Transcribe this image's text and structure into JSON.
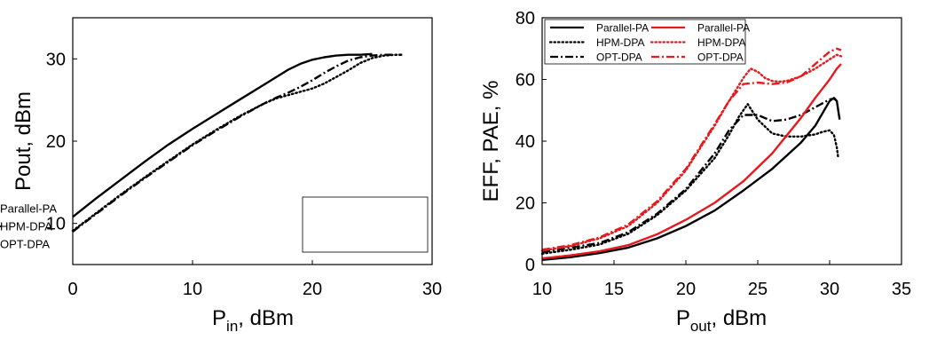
{
  "colors": {
    "black": "#000000",
    "red": "#e8191c",
    "frame": "#000000"
  },
  "chart_data": [
    {
      "type": "line",
      "title": "",
      "xlabel": {
        "main": "P",
        "sub": "in",
        "suffix": ", dBm"
      },
      "ylabel": "Pout, dBm",
      "xlim": [
        0,
        30
      ],
      "ylim": [
        5,
        35
      ],
      "xticks": [
        "0",
        "10",
        "20",
        "30"
      ],
      "yticks": [
        "10",
        "20",
        "30"
      ],
      "grid": false,
      "legend_position": "bottom-right",
      "series": [
        {
          "name": "Parallel-PA",
          "color": "#000000",
          "style": "solid",
          "x": [
            0,
            2,
            4,
            6,
            8,
            10,
            12,
            14,
            16,
            18,
            19,
            20,
            21,
            22,
            23,
            24,
            25
          ],
          "y": [
            10.8,
            13.1,
            15.3,
            17.5,
            19.6,
            21.5,
            23.3,
            25.1,
            26.9,
            28.7,
            29.4,
            29.9,
            30.2,
            30.4,
            30.5,
            30.5,
            30.6
          ]
        },
        {
          "name": "HPM-DPA",
          "color": "#000000",
          "style": "dotted",
          "x": [
            0,
            2,
            4,
            6,
            8,
            10,
            12,
            14,
            16,
            17,
            18,
            19,
            20,
            21,
            22,
            23,
            24,
            25,
            26,
            27,
            27.5
          ],
          "y": [
            9.1,
            11.3,
            13.5,
            15.6,
            17.6,
            19.6,
            21.4,
            23.1,
            24.6,
            25.2,
            25.6,
            26.0,
            26.4,
            27.0,
            27.8,
            28.6,
            29.5,
            30.1,
            30.4,
            30.5,
            30.5
          ]
        },
        {
          "name": "OPT-DPA",
          "color": "#000000",
          "style": "dashdot",
          "x": [
            0,
            2,
            4,
            6,
            8,
            10,
            12,
            14,
            16,
            17,
            18,
            19,
            20,
            21,
            22,
            23,
            24,
            25,
            26,
            27,
            27.5
          ],
          "y": [
            9.0,
            11.2,
            13.4,
            15.5,
            17.5,
            19.5,
            21.3,
            23.0,
            24.6,
            25.3,
            25.9,
            26.6,
            27.4,
            28.3,
            29.1,
            29.8,
            30.2,
            30.4,
            30.5,
            30.5,
            30.5
          ]
        }
      ]
    },
    {
      "type": "line",
      "title": "",
      "xlabel": {
        "main": "P",
        "sub": "out",
        "suffix": ", dBm"
      },
      "ylabel": "EFF, PAE, %",
      "xlim": [
        10,
        35
      ],
      "ylim": [
        0,
        80
      ],
      "xticks": [
        "10",
        "15",
        "20",
        "25",
        "30",
        "35"
      ],
      "yticks": [
        "0",
        "20",
        "40",
        "60",
        "80"
      ],
      "grid": false,
      "legend_position": "top-left",
      "series": [
        {
          "name": "Parallel-PA",
          "color": "#000000",
          "style": "solid",
          "x": [
            10,
            12,
            14,
            16,
            18,
            20,
            22,
            24,
            26,
            28,
            29,
            29.5,
            30,
            30.3,
            30.5,
            30.6,
            30.7
          ],
          "y": [
            1.5,
            2.4,
            3.7,
            5.5,
            8.5,
            12.5,
            17.5,
            24,
            31,
            39.5,
            45,
            49,
            53,
            54,
            53,
            50,
            47
          ]
        },
        {
          "name": "HPM-DPA",
          "color": "#000000",
          "style": "dotted",
          "x": [
            10,
            12,
            14,
            16,
            18,
            20,
            22,
            23,
            23.7,
            24.3,
            25,
            26,
            27,
            28,
            29,
            29.5,
            30,
            30.3,
            30.5,
            30.6
          ],
          "y": [
            3.5,
            4.8,
            6.5,
            10,
            16,
            24,
            34.5,
            42,
            48,
            52,
            47,
            42.5,
            41.5,
            41.5,
            42.2,
            43,
            43.5,
            42,
            38,
            34.5
          ]
        },
        {
          "name": "OPT-DPA",
          "color": "#000000",
          "style": "dashdot",
          "x": [
            10,
            12,
            14,
            16,
            18,
            20,
            22,
            23,
            24,
            25,
            26,
            27,
            28,
            29,
            30,
            30.3,
            30.5
          ],
          "y": [
            4,
            5.5,
            7,
            10.5,
            16.5,
            24.5,
            36,
            43.5,
            48.5,
            48.5,
            46.5,
            47,
            48.5,
            51,
            53.5,
            53.8,
            53
          ]
        },
        {
          "name": "Parallel-PA",
          "color": "#e8191c",
          "style": "solid",
          "x": [
            10,
            12,
            14,
            16,
            18,
            20,
            22,
            24,
            26,
            28,
            29,
            30,
            30.5,
            30.8
          ],
          "y": [
            2,
            3,
            4.3,
            6.3,
            9.8,
            14.5,
            20,
            27,
            36,
            47.5,
            54,
            60,
            63.5,
            65
          ]
        },
        {
          "name": "HPM-DPA",
          "color": "#e8191c",
          "style": "dotted",
          "x": [
            10,
            12,
            14,
            16,
            18,
            20,
            22,
            23,
            24,
            24.5,
            25,
            25.5,
            26,
            26.5,
            27,
            28,
            29,
            30,
            30.5,
            30.8
          ],
          "y": [
            4.5,
            6,
            8.5,
            12.5,
            20,
            30.5,
            45,
            53,
            60.5,
            63.5,
            62.5,
            60.5,
            59.5,
            59.3,
            59.5,
            61,
            63.5,
            66.5,
            68,
            67.5
          ]
        },
        {
          "name": "OPT-DPA",
          "color": "#e8191c",
          "style": "dashdot",
          "x": [
            10,
            12,
            14,
            16,
            18,
            20,
            22,
            23,
            24,
            25,
            26,
            27,
            28,
            29,
            30,
            30.5,
            30.8
          ],
          "y": [
            4.8,
            6.3,
            8.8,
            13,
            20.5,
            31,
            45.5,
            53,
            58.5,
            59,
            58.5,
            59,
            61,
            65,
            69,
            70,
            69.5
          ]
        }
      ]
    }
  ]
}
